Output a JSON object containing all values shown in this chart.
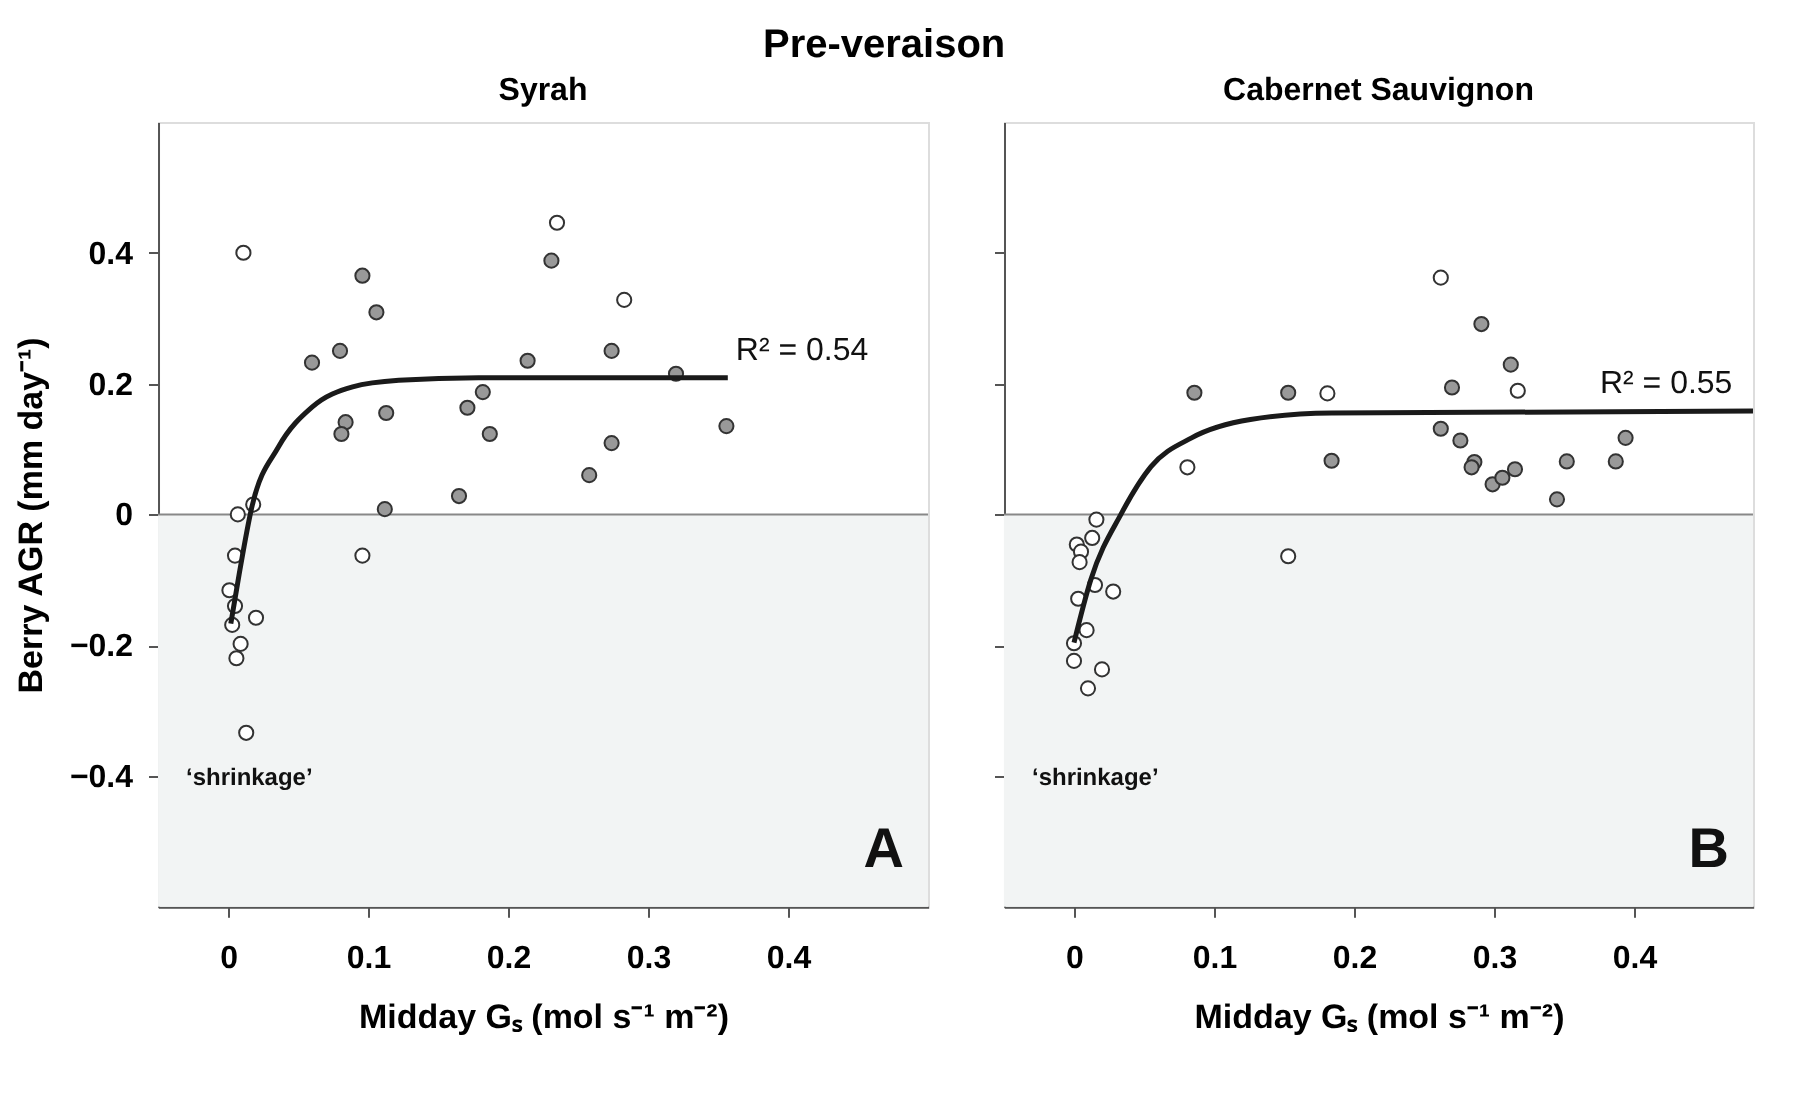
{
  "chart_data": [
    {
      "type": "scatter",
      "title": "Pre-veraison",
      "subtitle": "Syrah",
      "xlabel": "Midday Gₛ (mol s⁻¹ m⁻²)",
      "ylabel": "Berry AGR (mm day⁻¹)",
      "xlim": [
        -0.05,
        0.5
      ],
      "ylim": [
        -0.6,
        0.6
      ],
      "xticks": [
        0,
        0.1,
        0.2,
        0.3,
        0.4
      ],
      "yticks": [
        -0.4,
        -0.2,
        0,
        0.2,
        0.4
      ],
      "grid": false,
      "marker": "circle",
      "bands": [
        {
          "axis": "y",
          "from": -0.6,
          "to": 0,
          "color": "#f2f4f4"
        }
      ],
      "ref_lines": [
        {
          "axis": "y",
          "value": 0,
          "color": "#888888"
        }
      ],
      "series": [
        {
          "color": "#ffffff",
          "x": [
            0.011,
            0.235,
            0.283,
            0.018,
            0.007,
            0.005,
            0.001,
            0.005,
            0.003,
            0.02,
            0.009,
            0.006,
            0.013,
            0.096
          ],
          "values": [
            0.4,
            0.446,
            0.328,
            0.015,
            0.0,
            -0.063,
            -0.116,
            -0.14,
            -0.169,
            -0.158,
            -0.198,
            -0.22,
            -0.334,
            -0.063
          ]
        },
        {
          "color": "#999999",
          "x": [
            0.06,
            0.08,
            0.096,
            0.106,
            0.084,
            0.081,
            0.113,
            0.112,
            0.165,
            0.171,
            0.182,
            0.187,
            0.214,
            0.231,
            0.274,
            0.274,
            0.258,
            0.32,
            0.356
          ],
          "values": [
            0.232,
            0.25,
            0.365,
            0.309,
            0.141,
            0.123,
            0.155,
            0.008,
            0.028,
            0.163,
            0.187,
            0.123,
            0.235,
            0.388,
            0.25,
            0.109,
            0.06,
            0.215,
            0.135
          ]
        },
        {
          "type": "line",
          "marker": "none",
          "color": "#1a1a1a",
          "x": [
            0.002,
            0.008,
            0.017,
            0.036,
            0.06,
            0.089,
            0.122,
            0.179,
            0.357
          ],
          "values": [
            -0.167,
            -0.091,
            0.011,
            0.103,
            0.164,
            0.195,
            0.205,
            0.209,
            0.209
          ]
        }
      ],
      "annotations": [
        {
          "text": "R² = 0.54",
          "x": 0.357,
          "y": 0.209
        },
        "‘shrinkage’",
        "A"
      ]
    },
    {
      "type": "scatter",
      "subtitle": "Cabernet Sauvignon",
      "xlabel": "Midday Gₛ (mol s⁻¹ m⁻²)",
      "xlim": [
        -0.05,
        0.485
      ],
      "ylim": [
        -0.6,
        0.6
      ],
      "xticks": [
        0,
        0.1,
        0.2,
        0.3,
        0.4
      ],
      "yticks": [
        -0.4,
        -0.2,
        0,
        0.2,
        0.4
      ],
      "tick_labels": "x",
      "grid": false,
      "marker": "circle",
      "bands": [
        {
          "axis": "y",
          "from": -0.6,
          "to": 0,
          "color": "#f2f4f4"
        }
      ],
      "ref_lines": [
        {
          "axis": "y",
          "value": 0,
          "color": "#888888"
        }
      ],
      "series": [
        {
          "color": "#ffffff",
          "x": [
            0.262,
            0.181,
            0.317,
            0.081,
            0.016,
            0.013,
            0.002,
            0.005,
            0.004,
            0.015,
            0.028,
            0.003,
            0.009,
            0.0,
            0.0,
            0.02,
            0.01,
            0.153
          ],
          "values": [
            0.362,
            0.185,
            0.189,
            0.072,
            -0.008,
            -0.036,
            -0.046,
            -0.057,
            -0.073,
            -0.108,
            -0.118,
            -0.129,
            -0.177,
            -0.197,
            -0.224,
            -0.237,
            -0.266,
            -0.064
          ]
        },
        {
          "color": "#999999",
          "x": [
            0.086,
            0.153,
            0.184,
            0.291,
            0.27,
            0.312,
            0.262,
            0.276,
            0.286,
            0.284,
            0.299,
            0.306,
            0.315,
            0.345,
            0.352,
            0.387,
            0.394
          ],
          "values": [
            0.186,
            0.186,
            0.082,
            0.291,
            0.194,
            0.229,
            0.131,
            0.113,
            0.08,
            0.072,
            0.046,
            0.056,
            0.069,
            0.023,
            0.081,
            0.081,
            0.117
          ]
        },
        {
          "type": "line",
          "marker": "none",
          "color": "#1a1a1a",
          "x": [
            0.0,
            0.012,
            0.034,
            0.055,
            0.084,
            0.126,
            0.184,
            0.485
          ],
          "values": [
            -0.196,
            -0.1,
            0.002,
            0.073,
            0.117,
            0.145,
            0.155,
            0.158
          ]
        }
      ],
      "annotations": [
        {
          "text": "R² = 0.55",
          "x": 0.37,
          "y": 0.158
        },
        "‘shrinkage’",
        "B"
      ]
    }
  ]
}
